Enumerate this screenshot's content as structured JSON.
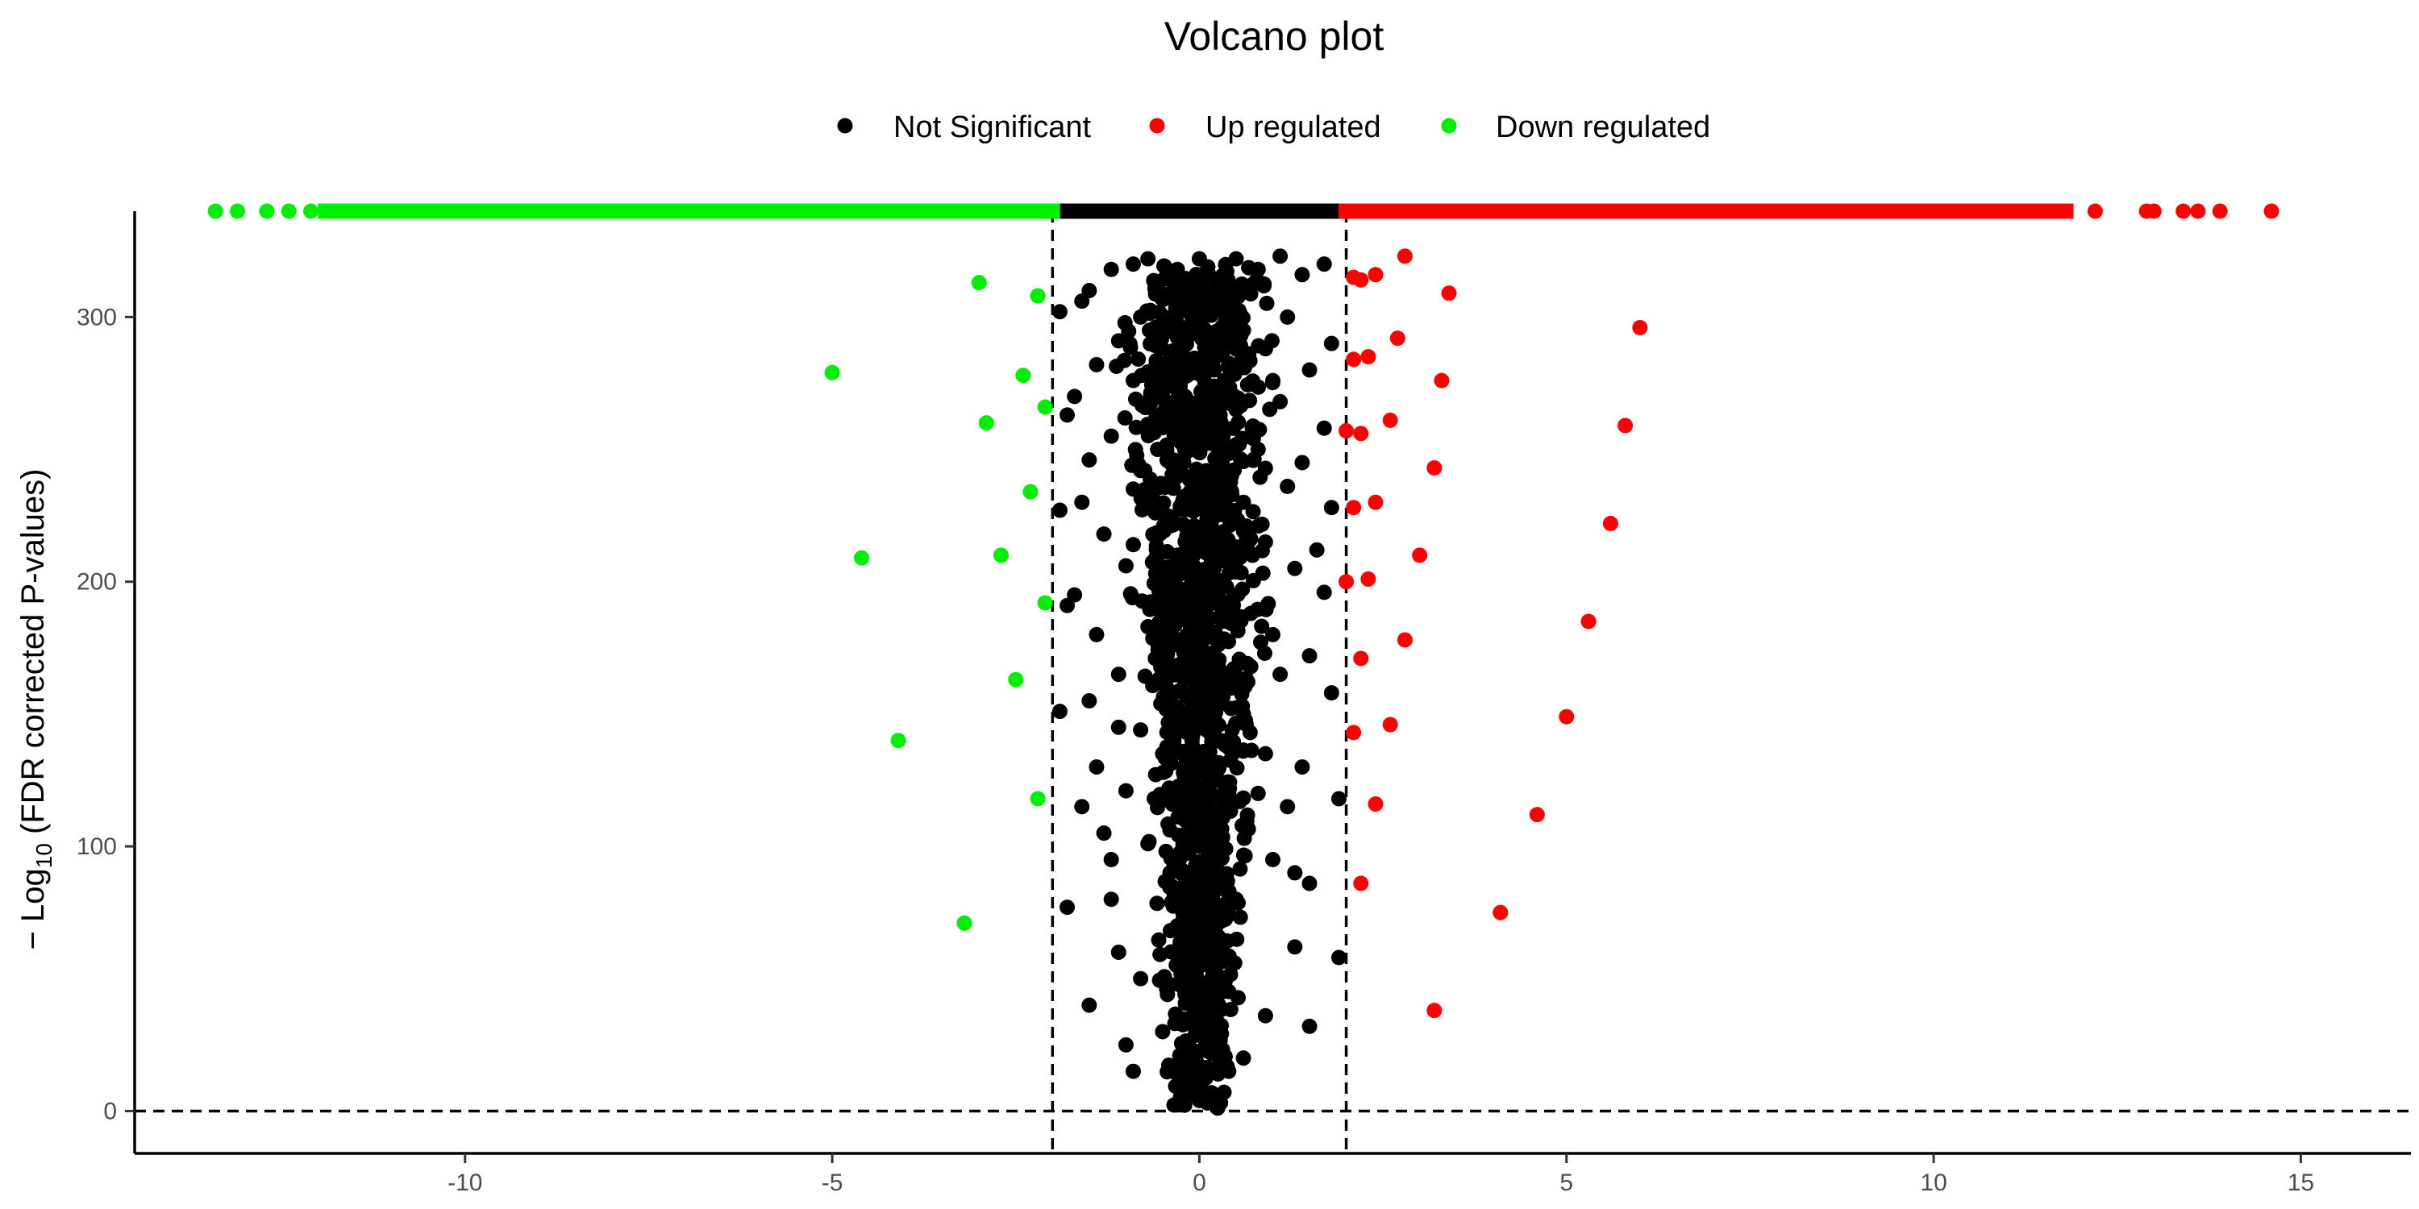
{
  "chart_data": {
    "type": "scatter",
    "title": "Volcano plot",
    "xlabel": "",
    "ylabel": {
      "prefix": "− Log",
      "subscript": "10",
      "suffix": " (FDR corrected P-values)"
    },
    "xlim": [
      -14.5,
      16.5
    ],
    "ylim": [
      -16,
      340
    ],
    "x_ticks": [
      {
        "value": -10,
        "label": "-10"
      },
      {
        "value": -5,
        "label": "-5"
      },
      {
        "value": 0,
        "label": "0"
      },
      {
        "value": 5,
        "label": "5"
      },
      {
        "value": 10,
        "label": "10"
      },
      {
        "value": 15,
        "label": "15"
      }
    ],
    "y_ticks": [
      {
        "value": 0,
        "label": "0"
      },
      {
        "value": 100,
        "label": "100"
      },
      {
        "value": 200,
        "label": "200"
      },
      {
        "value": 300,
        "label": "300"
      }
    ],
    "reference_lines": {
      "vertical": [
        -2,
        2
      ],
      "horizontal": [
        0
      ],
      "style": "dashed"
    },
    "grid": false,
    "legend_position": "top",
    "series": [
      {
        "name": "Not Significant",
        "color": "#000000",
        "points": [
          [
            -1.9,
            302
          ],
          [
            -1.8,
            263
          ],
          [
            -1.9,
            227
          ],
          [
            -1.8,
            191
          ],
          [
            -1.9,
            151
          ],
          [
            -1.8,
            77
          ],
          [
            -1.6,
            306
          ],
          [
            -1.7,
            270
          ],
          [
            -1.6,
            230
          ],
          [
            -1.7,
            195
          ],
          [
            -1.5,
            155
          ],
          [
            -1.6,
            115
          ],
          [
            -1.5,
            310
          ],
          [
            -1.4,
            282
          ],
          [
            -1.5,
            246
          ],
          [
            -1.3,
            218
          ],
          [
            -1.4,
            180
          ],
          [
            -1.4,
            130
          ],
          [
            -1.2,
            80
          ],
          [
            -1.5,
            40
          ],
          [
            -1.2,
            318
          ],
          [
            -1.1,
            291
          ],
          [
            -1.2,
            255
          ],
          [
            -1.0,
            206
          ],
          [
            -1.1,
            165
          ],
          [
            -1.0,
            121
          ],
          [
            -1.1,
            60
          ],
          [
            -1.0,
            25
          ],
          [
            -0.9,
            320
          ],
          [
            -0.8,
            300
          ],
          [
            -0.9,
            276
          ],
          [
            -0.8,
            242
          ],
          [
            -0.9,
            214
          ],
          [
            -0.7,
            183
          ],
          [
            -0.8,
            144
          ],
          [
            -0.7,
            101
          ],
          [
            -0.8,
            50
          ],
          [
            -0.9,
            15
          ],
          [
            -0.7,
            322
          ],
          [
            -0.6,
            296
          ],
          [
            -0.5,
            260
          ],
          [
            -0.6,
            226
          ],
          [
            -0.5,
            197
          ],
          [
            -0.6,
            171
          ],
          [
            -0.5,
            135
          ],
          [
            -0.4,
            90
          ],
          [
            -0.5,
            30
          ],
          [
            -0.3,
            318
          ],
          [
            -0.3,
            285
          ],
          [
            -0.2,
            250
          ],
          [
            -0.3,
            210
          ],
          [
            -0.2,
            175
          ],
          [
            -0.1,
            140
          ],
          [
            -0.2,
            110
          ],
          [
            -0.3,
            70
          ],
          [
            -0.2,
            8
          ],
          [
            0.0,
            322
          ],
          [
            0.1,
            290
          ],
          [
            0.0,
            260
          ],
          [
            0.1,
            230
          ],
          [
            0.0,
            200
          ],
          [
            0.1,
            160
          ],
          [
            0.0,
            100
          ],
          [
            0.0,
            4
          ],
          [
            0.3,
            315
          ],
          [
            0.2,
            280
          ],
          [
            0.3,
            245
          ],
          [
            0.2,
            205
          ],
          [
            0.3,
            165
          ],
          [
            0.4,
            120
          ],
          [
            0.3,
            60
          ],
          [
            0.4,
            15
          ],
          [
            0.5,
            322
          ],
          [
            0.6,
            295
          ],
          [
            0.5,
            265
          ],
          [
            0.6,
            230
          ],
          [
            0.7,
            188
          ],
          [
            0.6,
            150
          ],
          [
            0.5,
            80
          ],
          [
            0.6,
            20
          ],
          [
            0.8,
            318
          ],
          [
            0.9,
            288
          ],
          [
            0.8,
            250
          ],
          [
            0.9,
            215
          ],
          [
            1.0,
            180
          ],
          [
            0.9,
            135
          ],
          [
            1.0,
            95
          ],
          [
            0.9,
            36
          ],
          [
            1.1,
            323
          ],
          [
            1.2,
            300
          ],
          [
            1.1,
            268
          ],
          [
            1.2,
            236
          ],
          [
            1.3,
            205
          ],
          [
            1.1,
            165
          ],
          [
            1.2,
            115
          ],
          [
            1.3,
            62
          ],
          [
            1.4,
            316
          ],
          [
            1.5,
            280
          ],
          [
            1.4,
            245
          ],
          [
            1.6,
            212
          ],
          [
            1.5,
            172
          ],
          [
            1.4,
            130
          ],
          [
            1.5,
            86
          ],
          [
            1.5,
            32
          ],
          [
            1.7,
            320
          ],
          [
            1.8,
            290
          ],
          [
            1.7,
            258
          ],
          [
            1.8,
            228
          ],
          [
            1.7,
            196
          ],
          [
            1.8,
            158
          ],
          [
            1.9,
            118
          ],
          [
            1.9,
            58
          ],
          [
            -1.2,
            95
          ],
          [
            -1.1,
            145
          ],
          [
            -0.9,
            235
          ],
          [
            0.8,
            120
          ],
          [
            1.0,
            276
          ],
          [
            -1.3,
            105
          ],
          [
            1.3,
            90
          ]
        ],
        "density_band": {
          "x_center": 0,
          "x_half_width_top": 1.4,
          "x_half_width_bottom": 0.6,
          "y_range": [
            0,
            320
          ]
        }
      },
      {
        "name": "Up regulated",
        "color": "#ff0000",
        "points": [
          [
            2.8,
            323
          ],
          [
            2.4,
            316
          ],
          [
            2.1,
            315
          ],
          [
            2.2,
            314
          ],
          [
            3.4,
            309
          ],
          [
            6.0,
            296
          ],
          [
            2.7,
            292
          ],
          [
            2.3,
            285
          ],
          [
            2.1,
            284
          ],
          [
            3.3,
            276
          ],
          [
            2.6,
            261
          ],
          [
            5.8,
            259
          ],
          [
            2.0,
            257
          ],
          [
            2.2,
            256
          ],
          [
            3.2,
            243
          ],
          [
            2.4,
            230
          ],
          [
            2.1,
            228
          ],
          [
            5.6,
            222
          ],
          [
            3.0,
            210
          ],
          [
            2.3,
            201
          ],
          [
            2.0,
            200
          ],
          [
            5.3,
            185
          ],
          [
            2.8,
            178
          ],
          [
            2.2,
            171
          ],
          [
            5.0,
            149
          ],
          [
            2.6,
            146
          ],
          [
            2.1,
            143
          ],
          [
            2.4,
            116
          ],
          [
            4.6,
            112
          ],
          [
            2.2,
            86
          ],
          [
            4.1,
            75
          ],
          [
            3.2,
            38
          ]
        ],
        "ceiling_band": {
          "x_range": [
            2.0,
            11.8
          ],
          "y": 340
        },
        "ceiling_outliers": [
          12.2,
          12.9,
          13.0,
          13.4,
          13.6,
          13.9,
          14.6
        ]
      },
      {
        "name": "Down regulated",
        "color": "#00ee00",
        "points": [
          [
            -3.0,
            313
          ],
          [
            -2.2,
            308
          ],
          [
            -5.0,
            279
          ],
          [
            -2.4,
            278
          ],
          [
            -2.1,
            266
          ],
          [
            -2.9,
            260
          ],
          [
            -2.3,
            234
          ],
          [
            -4.6,
            209
          ],
          [
            -2.7,
            210
          ],
          [
            -2.1,
            192
          ],
          [
            -2.5,
            163
          ],
          [
            -4.1,
            140
          ],
          [
            -2.2,
            118
          ],
          [
            -3.2,
            71
          ]
        ],
        "ceiling_band": {
          "x_range": [
            -11.9,
            -2.0
          ],
          "y": 340
        },
        "ceiling_outliers": [
          -13.4,
          -13.1,
          -12.7,
          -12.4,
          -12.1
        ]
      }
    ]
  }
}
